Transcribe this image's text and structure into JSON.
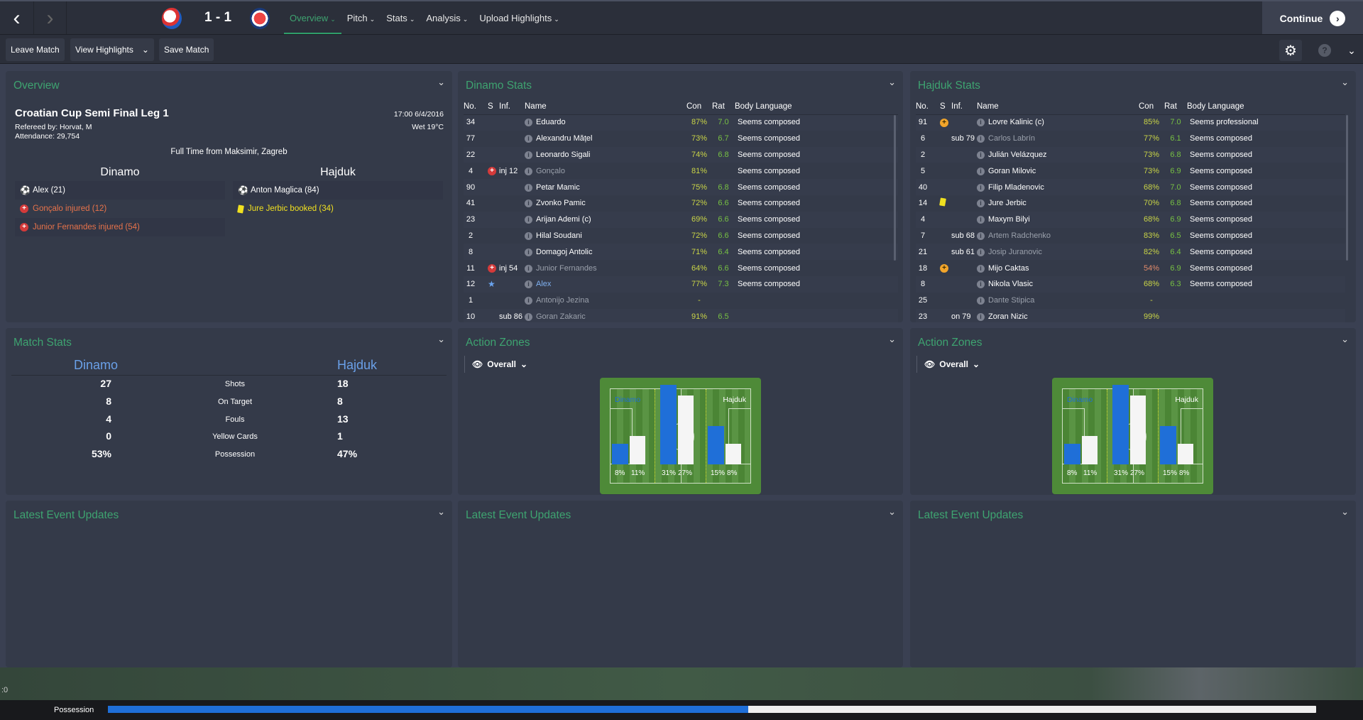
{
  "header": {
    "score": "1 - 1",
    "home_crest": "dinamo-crest",
    "away_crest": "hajduk-crest",
    "tabs": [
      {
        "label": "Overview",
        "active": true
      },
      {
        "label": "Pitch"
      },
      {
        "label": "Stats"
      },
      {
        "label": "Analysis"
      },
      {
        "label": "Upload Highlights"
      }
    ],
    "continue_label": "Continue"
  },
  "toolbar": {
    "leave": "Leave Match",
    "highlights": "View Highlights",
    "save": "Save Match"
  },
  "overview": {
    "title": "Overview",
    "competition": "Croatian Cup Semi Final Leg 1",
    "referee": "Refereed by: Horvat, M",
    "attendance": "Attendance: 29,754",
    "datetime": "17:00 6/4/2016",
    "weather": "Wet 19°C",
    "status": "Full Time from Maksimir, Zagreb",
    "home": {
      "name": "Dinamo",
      "events": [
        {
          "icon": "goal",
          "text": "Alex (21)"
        },
        {
          "icon": "injury",
          "text": "Gonçalo injured (12)"
        },
        {
          "icon": "injury",
          "text": "Junior Fernandes injured (54)"
        }
      ]
    },
    "away": {
      "name": "Hajduk",
      "events": [
        {
          "icon": "goal",
          "text": "Anton Maglica (84)"
        },
        {
          "icon": "yellow-card",
          "text": "Jure Jerbic booked (34)"
        }
      ]
    }
  },
  "columns": {
    "no": "No.",
    "s": "S",
    "inf": "Inf.",
    "name": "Name",
    "con": "Con",
    "rat": "Rat",
    "bl": "Body Language"
  },
  "dinamo_stats": {
    "title": "Dinamo Stats",
    "rows": [
      {
        "no": "34",
        "s": "",
        "inf": "",
        "name": "Eduardo",
        "con": "87%",
        "rat": "7.0",
        "bl": "Seems composed"
      },
      {
        "no": "77",
        "s": "",
        "inf": "",
        "name": "Alexandru Mățel",
        "con": "73%",
        "rat": "6.7",
        "bl": "Seems composed"
      },
      {
        "no": "22",
        "s": "",
        "inf": "",
        "name": "Leonardo Sigali",
        "con": "74%",
        "rat": "6.8",
        "bl": "Seems composed"
      },
      {
        "no": "4",
        "s": "injury",
        "inf": "inj 12",
        "name": "Gonçalo",
        "con": "81%",
        "rat": "",
        "bl": "Seems composed",
        "dim": true
      },
      {
        "no": "90",
        "s": "",
        "inf": "",
        "name": "Petar Mamic",
        "con": "75%",
        "rat": "6.8",
        "bl": "Seems composed"
      },
      {
        "no": "41",
        "s": "",
        "inf": "",
        "name": "Zvonko Pamic",
        "con": "72%",
        "rat": "6.6",
        "bl": "Seems composed"
      },
      {
        "no": "23",
        "s": "",
        "inf": "",
        "name": "Arijan Ademi (c)",
        "con": "69%",
        "rat": "6.6",
        "bl": "Seems composed"
      },
      {
        "no": "2",
        "s": "",
        "inf": "",
        "name": "Hilal Soudani",
        "con": "72%",
        "rat": "6.6",
        "bl": "Seems composed"
      },
      {
        "no": "8",
        "s": "",
        "inf": "",
        "name": "Domagoj Antolic",
        "con": "71%",
        "rat": "6.4",
        "bl": "Seems composed"
      },
      {
        "no": "11",
        "s": "injury",
        "inf": "inj 54",
        "name": "Junior Fernandes",
        "con": "64%",
        "rat": "6.6",
        "bl": "Seems composed",
        "dim": true
      },
      {
        "no": "12",
        "s": "star",
        "inf": "",
        "name": "Alex",
        "con": "77%",
        "rat": "7.3",
        "bl": "Seems composed",
        "highlight": true
      },
      {
        "no": "1",
        "s": "",
        "inf": "",
        "name": "Antonijo Jezina",
        "con": "-",
        "rat": "",
        "bl": "",
        "dim": true
      },
      {
        "no": "10",
        "s": "",
        "inf": "sub 86",
        "name": "Goran Zakaric",
        "con": "91%",
        "rat": "6.5",
        "bl": "",
        "dim": true
      }
    ]
  },
  "hajduk_stats": {
    "title": "Hajduk Stats",
    "rows": [
      {
        "no": "91",
        "s": "orange-plus",
        "inf": "",
        "name": "Lovre Kalinic (c)",
        "con": "85%",
        "rat": "7.0",
        "bl": "Seems professional"
      },
      {
        "no": "6",
        "s": "",
        "inf": "sub 79",
        "name": "Carlos Labrín",
        "con": "77%",
        "rat": "6.1",
        "bl": "Seems composed",
        "dim": true
      },
      {
        "no": "2",
        "s": "",
        "inf": "",
        "name": "Julián Velázquez",
        "con": "73%",
        "rat": "6.8",
        "bl": "Seems composed"
      },
      {
        "no": "5",
        "s": "",
        "inf": "",
        "name": "Goran Milovic",
        "con": "73%",
        "rat": "6.9",
        "bl": "Seems composed"
      },
      {
        "no": "40",
        "s": "",
        "inf": "",
        "name": "Filip Mladenovic",
        "con": "68%",
        "rat": "7.0",
        "bl": "Seems composed"
      },
      {
        "no": "14",
        "s": "yellow-card",
        "inf": "",
        "name": "Jure Jerbic",
        "con": "70%",
        "rat": "6.8",
        "bl": "Seems composed"
      },
      {
        "no": "4",
        "s": "",
        "inf": "",
        "name": "Maxym Bilyi",
        "con": "68%",
        "rat": "6.9",
        "bl": "Seems composed"
      },
      {
        "no": "7",
        "s": "",
        "inf": "sub 68",
        "name": "Artem Radchenko",
        "con": "83%",
        "rat": "6.5",
        "bl": "Seems composed",
        "dim": true
      },
      {
        "no": "21",
        "s": "",
        "inf": "sub 61",
        "name": "Josip Juranovic",
        "con": "82%",
        "rat": "6.4",
        "bl": "Seems composed",
        "dim": true
      },
      {
        "no": "18",
        "s": "orange-plus",
        "inf": "",
        "name": "Mijo Caktas",
        "con": "54%",
        "rat": "6.9",
        "bl": "Seems composed",
        "low": true
      },
      {
        "no": "8",
        "s": "",
        "inf": "",
        "name": "Nikola Vlasic",
        "con": "68%",
        "rat": "6.3",
        "bl": "Seems composed"
      },
      {
        "no": "25",
        "s": "",
        "inf": "",
        "name": "Dante Stipica",
        "con": "-",
        "rat": "",
        "bl": "",
        "dim": true
      },
      {
        "no": "23",
        "s": "",
        "inf": "on 79",
        "name": "Zoran Nizic",
        "con": "99%",
        "rat": "",
        "bl": ""
      }
    ]
  },
  "match_stats": {
    "title": "Match Stats",
    "home": "Dinamo",
    "away": "Hajduk",
    "rows": [
      {
        "label": "Shots",
        "home": "27",
        "away": "18"
      },
      {
        "label": "On Target",
        "home": "8",
        "away": "8"
      },
      {
        "label": "Fouls",
        "home": "4",
        "away": "13"
      },
      {
        "label": "Yellow Cards",
        "home": "0",
        "away": "1"
      },
      {
        "label": "Possession",
        "home": "53%",
        "away": "47%"
      }
    ]
  },
  "action_zones": [
    {
      "title": "Action Zones",
      "filter": "Overall",
      "home": "Dinamo",
      "away": "Hajduk",
      "zones": [
        {
          "home": 8,
          "away": 11
        },
        {
          "home": 31,
          "away": 27
        },
        {
          "home": 15,
          "away": 8
        }
      ],
      "labels": [
        [
          "8%",
          "11%"
        ],
        [
          "31%",
          "27%"
        ],
        [
          "15%",
          "8%"
        ]
      ]
    },
    {
      "title": "Action Zones",
      "filter": "Overall",
      "home": "Dinamo",
      "away": "Hajduk",
      "zones": [
        {
          "home": 8,
          "away": 11
        },
        {
          "home": 31,
          "away": 27
        },
        {
          "home": 15,
          "away": 8
        }
      ],
      "labels": [
        [
          "8%",
          "11%"
        ],
        [
          "31%",
          "27%"
        ],
        [
          "15%",
          "8%"
        ]
      ]
    }
  ],
  "latest": [
    "Latest Event Updates",
    "Latest Event Updates",
    "Latest Event Updates"
  ],
  "bottom": {
    "possession_label": "Possession",
    "home_possession": 53,
    "clock_text": ":0"
  },
  "colors": {
    "accent": "#3ea370",
    "home": "#1f6fd8",
    "away": "#f5f5f5",
    "pitch": "#4e8a38"
  }
}
